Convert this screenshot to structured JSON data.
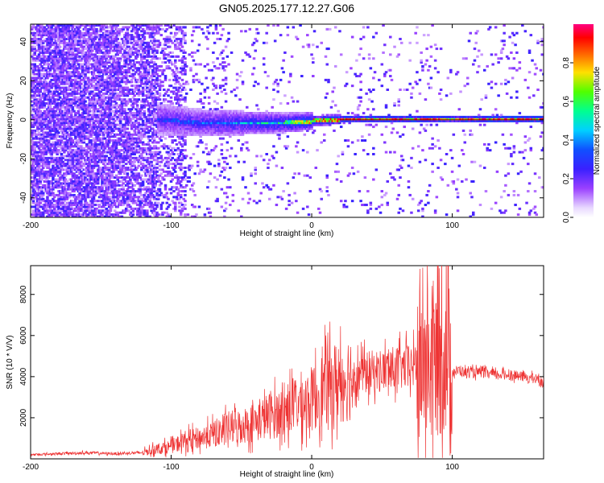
{
  "title": "GN05.2025.177.12.27.G06",
  "chart_data": [
    {
      "type": "heatmap",
      "xlabel": "Height of straight line (km)",
      "ylabel": "Frequency (Hz)",
      "xlim": [
        -200,
        165
      ],
      "ylim": [
        -50,
        49
      ],
      "xticks": [
        -200,
        -100,
        0,
        100
      ],
      "yticks": [
        -40,
        -20,
        0,
        20,
        40
      ],
      "grid": false,
      "colorbar": {
        "label": "Normalized spectral amplitude",
        "range": [
          0.0,
          1.0
        ],
        "ticks": [
          0.0,
          0.2,
          0.4,
          0.6,
          0.8
        ],
        "tick_labels": [
          "0.0",
          "0.2",
          "0.4",
          "0.6",
          "0.8"
        ],
        "colormap": "rainbow (white-violet-blue-cyan-green-yellow-red-magenta)"
      },
      "description_points": {
        "x": [
          -200,
          -150,
          -110,
          -80,
          -50,
          -20,
          0,
          20,
          50,
          90,
          100,
          110,
          165
        ],
        "peak_frequency": [
          0,
          0,
          0,
          -2,
          -2,
          -2,
          -1,
          0,
          0,
          0,
          0,
          0,
          0
        ],
        "peak_amplitude": [
          0.15,
          0.2,
          0.3,
          0.35,
          0.45,
          0.55,
          0.75,
          0.85,
          0.9,
          0.9,
          0.7,
          0.9,
          0.9
        ]
      }
    },
    {
      "type": "line",
      "xlabel": "Height of straight line (km)",
      "ylabel": "SNR (10 * V/V)",
      "xlim": [
        -200,
        165
      ],
      "ylim": [
        0,
        9400
      ],
      "xticks": [
        -200,
        -100,
        0,
        100
      ],
      "yticks": [
        2000,
        4000,
        6000,
        8000
      ],
      "grid": false,
      "color": "#ee3333",
      "series": [
        {
          "x": [
            -200,
            -180,
            -160,
            -140,
            -120,
            -110,
            -100,
            -90,
            -80,
            -70,
            -60,
            -50,
            -40,
            -30,
            -20,
            -10,
            0,
            10,
            20,
            30,
            40,
            50,
            60,
            70,
            80,
            90,
            95,
            100,
            105,
            110,
            120,
            130,
            140,
            150,
            160,
            165
          ],
          "values": [
            200,
            250,
            300,
            250,
            300,
            500,
            600,
            900,
            1000,
            1200,
            1500,
            1600,
            1800,
            2100,
            2300,
            2700,
            2900,
            3500,
            3800,
            4100,
            4200,
            4300,
            4400,
            4500,
            4600,
            5000,
            5500,
            4200,
            4300,
            4200,
            4200,
            4100,
            4100,
            4000,
            3900,
            3700
          ]
        }
      ]
    }
  ]
}
